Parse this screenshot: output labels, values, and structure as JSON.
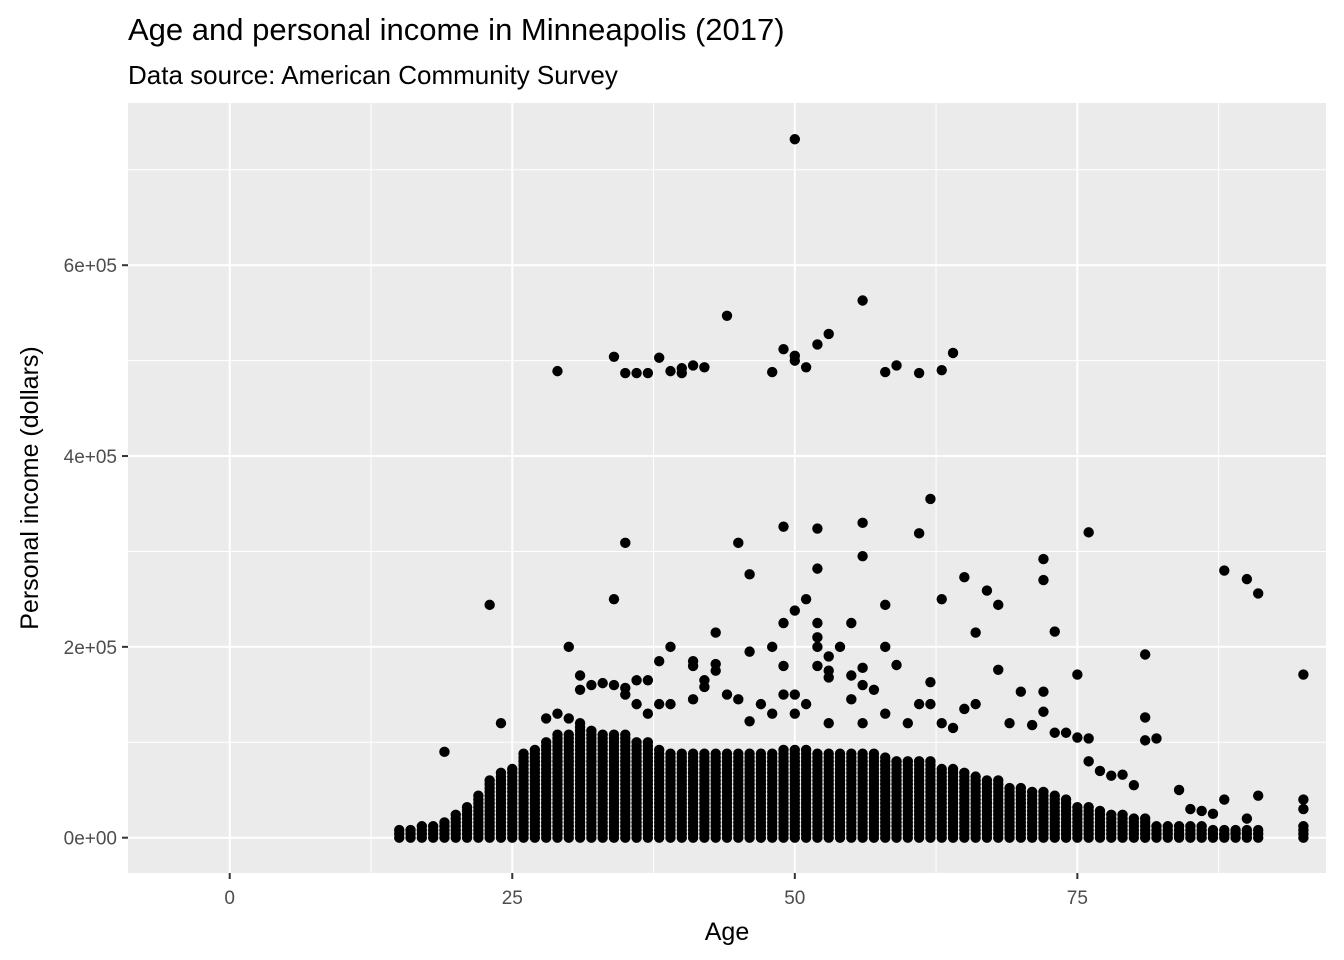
{
  "chart_data": {
    "type": "scatter",
    "title": "Age and personal income in Minneapolis (2017)",
    "subtitle": "Data source: American Community Survey",
    "xlabel": "Age",
    "ylabel": "Personal income (dollars)",
    "xlim": [
      -9,
      97
    ],
    "ylim": [
      -37000,
      770000
    ],
    "x_ticks": [
      0,
      25,
      50,
      75
    ],
    "x_tick_labels": [
      "0",
      "25",
      "50",
      "75"
    ],
    "x_minor_ticks": [
      12.5,
      37.5,
      62.5,
      87.5
    ],
    "y_ticks": [
      0,
      200000,
      400000,
      600000
    ],
    "y_tick_labels": [
      "0e+00",
      "2e+05",
      "4e+05",
      "6e+05"
    ],
    "y_minor_ticks": [
      100000,
      300000,
      500000,
      700000
    ],
    "grid": true,
    "background": "#ebebeb",
    "grid_color": "#ffffff",
    "point_color": "#000000",
    "dense_band": [
      [
        15,
        8000
      ],
      [
        16,
        8000
      ],
      [
        17,
        15000
      ],
      [
        18,
        15000
      ],
      [
        19,
        18000
      ],
      [
        20,
        25000
      ],
      [
        21,
        35000
      ],
      [
        22,
        45000
      ],
      [
        23,
        60000
      ],
      [
        24,
        70000
      ],
      [
        25,
        75000
      ],
      [
        26,
        90000
      ],
      [
        27,
        95000
      ],
      [
        28,
        100000
      ],
      [
        29,
        110000
      ],
      [
        30,
        110000
      ],
      [
        31,
        120000
      ],
      [
        32,
        115000
      ],
      [
        33,
        110000
      ],
      [
        34,
        110000
      ],
      [
        35,
        110000
      ],
      [
        36,
        100000
      ],
      [
        37,
        100000
      ],
      [
        38,
        95000
      ],
      [
        39,
        90000
      ],
      [
        40,
        90000
      ],
      [
        41,
        90000
      ],
      [
        42,
        90000
      ],
      [
        43,
        90000
      ],
      [
        44,
        90000
      ],
      [
        45,
        90000
      ],
      [
        46,
        90000
      ],
      [
        47,
        90000
      ],
      [
        48,
        90000
      ],
      [
        49,
        95000
      ],
      [
        50,
        95000
      ],
      [
        51,
        95000
      ],
      [
        52,
        90000
      ],
      [
        53,
        90000
      ],
      [
        54,
        90000
      ],
      [
        55,
        90000
      ],
      [
        56,
        90000
      ],
      [
        57,
        90000
      ],
      [
        58,
        85000
      ],
      [
        59,
        80000
      ],
      [
        60,
        80000
      ],
      [
        61,
        80000
      ],
      [
        62,
        80000
      ],
      [
        63,
        75000
      ],
      [
        64,
        75000
      ],
      [
        65,
        70000
      ],
      [
        66,
        65000
      ],
      [
        67,
        60000
      ],
      [
        68,
        60000
      ],
      [
        69,
        55000
      ],
      [
        70,
        55000
      ],
      [
        71,
        50000
      ],
      [
        72,
        50000
      ],
      [
        73,
        45000
      ],
      [
        74,
        40000
      ],
      [
        75,
        35000
      ],
      [
        76,
        35000
      ],
      [
        77,
        30000
      ],
      [
        78,
        25000
      ],
      [
        79,
        25000
      ],
      [
        80,
        20000
      ],
      [
        81,
        20000
      ],
      [
        82,
        15000
      ],
      [
        83,
        15000
      ],
      [
        84,
        15000
      ],
      [
        85,
        12000
      ],
      [
        86,
        12000
      ],
      [
        87,
        10000
      ],
      [
        88,
        10000
      ],
      [
        89,
        8000
      ],
      [
        90,
        10000
      ],
      [
        91,
        10000
      ],
      [
        95,
        15000
      ]
    ],
    "points": [
      [
        50,
        732000
      ],
      [
        56,
        563000
      ],
      [
        44,
        547000
      ],
      [
        53,
        528000
      ],
      [
        52,
        517000
      ],
      [
        49,
        512000
      ],
      [
        64,
        508000
      ],
      [
        50,
        505000
      ],
      [
        34,
        504000
      ],
      [
        50,
        500000
      ],
      [
        38,
        503000
      ],
      [
        59,
        495000
      ],
      [
        41,
        495000
      ],
      [
        42,
        493000
      ],
      [
        51,
        493000
      ],
      [
        40,
        492000
      ],
      [
        39,
        489000
      ],
      [
        29,
        489000
      ],
      [
        63,
        490000
      ],
      [
        48,
        488000
      ],
      [
        58,
        488000
      ],
      [
        61,
        487000
      ],
      [
        35,
        487000
      ],
      [
        36,
        487000
      ],
      [
        37,
        487000
      ],
      [
        40,
        487000
      ],
      [
        62,
        355000
      ],
      [
        56,
        330000
      ],
      [
        49,
        326000
      ],
      [
        52,
        324000
      ],
      [
        76,
        320000
      ],
      [
        61,
        319000
      ],
      [
        35,
        309000
      ],
      [
        45,
        309000
      ],
      [
        56,
        295000
      ],
      [
        72,
        292000
      ],
      [
        88,
        280000
      ],
      [
        46,
        276000
      ],
      [
        65,
        273000
      ],
      [
        90,
        271000
      ],
      [
        72,
        270000
      ],
      [
        52,
        282000
      ],
      [
        67,
        259000
      ],
      [
        91,
        256000
      ],
      [
        34,
        250000
      ],
      [
        51,
        250000
      ],
      [
        63,
        250000
      ],
      [
        23,
        244000
      ],
      [
        58,
        244000
      ],
      [
        68,
        244000
      ],
      [
        50,
        238000
      ],
      [
        49,
        225000
      ],
      [
        52,
        225000
      ],
      [
        55,
        225000
      ],
      [
        66,
        215000
      ],
      [
        43,
        215000
      ],
      [
        73,
        216000
      ],
      [
        52,
        210000
      ],
      [
        30,
        200000
      ],
      [
        39,
        200000
      ],
      [
        48,
        200000
      ],
      [
        52,
        200000
      ],
      [
        54,
        200000
      ],
      [
        58,
        200000
      ],
      [
        46,
        195000
      ],
      [
        81,
        192000
      ],
      [
        53,
        190000
      ],
      [
        41,
        185000
      ],
      [
        38,
        185000
      ],
      [
        43,
        182000
      ],
      [
        49,
        180000
      ],
      [
        56,
        178000
      ],
      [
        59,
        181000
      ],
      [
        41,
        180000
      ],
      [
        52,
        180000
      ],
      [
        68,
        176000
      ],
      [
        53,
        175000
      ],
      [
        43,
        175000
      ],
      [
        55,
        170000
      ],
      [
        75,
        171000
      ],
      [
        95,
        171000
      ],
      [
        31,
        170000
      ],
      [
        32,
        160000
      ],
      [
        33,
        162000
      ],
      [
        34,
        160000
      ],
      [
        35,
        157000
      ],
      [
        36,
        165000
      ],
      [
        37,
        165000
      ],
      [
        42,
        165000
      ],
      [
        53,
        168000
      ],
      [
        62,
        163000
      ],
      [
        56,
        160000
      ],
      [
        31,
        155000
      ],
      [
        35,
        150000
      ],
      [
        42,
        158000
      ],
      [
        44,
        150000
      ],
      [
        45,
        145000
      ],
      [
        49,
        150000
      ],
      [
        50,
        150000
      ],
      [
        55,
        145000
      ],
      [
        57,
        155000
      ],
      [
        70,
        153000
      ],
      [
        72,
        153000
      ],
      [
        36,
        140000
      ],
      [
        38,
        140000
      ],
      [
        39,
        140000
      ],
      [
        41,
        145000
      ],
      [
        47,
        140000
      ],
      [
        51,
        140000
      ],
      [
        61,
        140000
      ],
      [
        62,
        140000
      ],
      [
        66,
        140000
      ],
      [
        48,
        130000
      ],
      [
        58,
        130000
      ],
      [
        65,
        135000
      ],
      [
        72,
        132000
      ],
      [
        29,
        130000
      ],
      [
        30,
        125000
      ],
      [
        81,
        126000
      ],
      [
        28,
        125000
      ],
      [
        24,
        120000
      ],
      [
        37,
        130000
      ],
      [
        50,
        130000
      ],
      [
        46,
        122000
      ],
      [
        53,
        120000
      ],
      [
        56,
        120000
      ],
      [
        60,
        120000
      ],
      [
        63,
        120000
      ],
      [
        64,
        115000
      ],
      [
        69,
        120000
      ],
      [
        71,
        118000
      ],
      [
        73,
        110000
      ],
      [
        74,
        110000
      ],
      [
        75,
        105000
      ],
      [
        76,
        104000
      ],
      [
        81,
        102000
      ],
      [
        82,
        104000
      ],
      [
        76,
        80000
      ],
      [
        77,
        70000
      ],
      [
        78,
        65000
      ],
      [
        79,
        66000
      ],
      [
        80,
        55000
      ],
      [
        19,
        90000
      ],
      [
        84,
        50000
      ],
      [
        85,
        30000
      ],
      [
        86,
        28000
      ],
      [
        87,
        25000
      ],
      [
        88,
        40000
      ],
      [
        90,
        20000
      ],
      [
        91,
        44000
      ],
      [
        95,
        40000
      ],
      [
        95,
        30000
      ],
      [
        89,
        5000
      ],
      [
        88,
        3000
      ],
      [
        84,
        2000
      ]
    ]
  }
}
